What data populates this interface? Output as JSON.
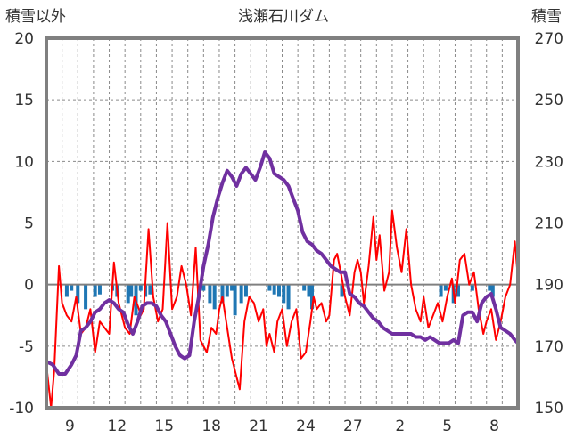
{
  "chart_data": {
    "type": "line",
    "title": "浅瀬石川ダム",
    "ylabel_left": "積雪以外",
    "ylabel_right": "積雪",
    "x_ticks": [
      "9",
      "12",
      "15",
      "18",
      "21",
      "24",
      "27",
      "2",
      "5",
      "8"
    ],
    "x_range": [
      0,
      30
    ],
    "y_left_range": [
      -10,
      20
    ],
    "y_left_ticks": [
      "-10",
      "-5",
      "0",
      "5",
      "10",
      "15",
      "20"
    ],
    "y_right_range": [
      150,
      270
    ],
    "y_right_ticks": [
      "150",
      "170",
      "190",
      "210",
      "230",
      "250",
      "270"
    ],
    "grid": {
      "vertical_dashed": true,
      "horizontal_dashed": true
    },
    "colors": {
      "temperature": "#ff0000",
      "snow_depth": "#7030a0",
      "precipitation": "#1f77b4",
      "frame": "#808080",
      "zero_line": "#808080"
    },
    "series": [
      {
        "axis": "left",
        "color": "#ff0000",
        "x": [
          0.0,
          0.3,
          0.5,
          0.8,
          1.0,
          1.3,
          1.6,
          1.9,
          2.2,
          2.5,
          2.8,
          3.1,
          3.4,
          3.7,
          4.0,
          4.3,
          4.6,
          5.0,
          5.3,
          5.6,
          5.9,
          6.0,
          6.2,
          6.5,
          6.8,
          7.1,
          7.4,
          7.7,
          8.0,
          8.3,
          8.6,
          8.9,
          9.2,
          9.5,
          9.8,
          10.0,
          10.2,
          10.5,
          10.8,
          11.0,
          11.2,
          11.5,
          11.8,
          12.0,
          12.3,
          12.6,
          12.9,
          13.2,
          13.5,
          13.8,
          14.0,
          14.2,
          14.5,
          14.7,
          15.0,
          15.3,
          15.6,
          15.9,
          16.2,
          16.5,
          16.8,
          17.0,
          17.2,
          17.5,
          17.8,
          18.0,
          18.3,
          18.5,
          18.8,
          19.0,
          19.3,
          19.6,
          19.8,
          20.0,
          20.2,
          20.5,
          20.8,
          21.0,
          21.2,
          21.5,
          21.8,
          22.0,
          22.3,
          22.6,
          22.9,
          23.2,
          23.5,
          23.8,
          24.0,
          24.3,
          24.6,
          24.9,
          25.2,
          25.5,
          25.8,
          26.0,
          26.3,
          26.6,
          26.9,
          27.2,
          27.5,
          27.8,
          28.0,
          28.3,
          28.6,
          28.9,
          29.2,
          29.5,
          29.8,
          30.0
        ],
        "values": [
          -6.5,
          -10.0,
          -7.0,
          1.5,
          -1.5,
          -2.5,
          -3.0,
          -1.0,
          -4.0,
          -3.5,
          -2.0,
          -5.5,
          -3.0,
          -3.5,
          -4.0,
          1.8,
          -1.5,
          -3.5,
          -4.0,
          -1.0,
          -2.0,
          -2.5,
          -2.0,
          4.5,
          -1.0,
          -3.0,
          -2.0,
          5.0,
          -2.0,
          -1.0,
          1.5,
          0.0,
          -2.5,
          3.0,
          -4.5,
          -5.0,
          -5.5,
          -3.5,
          -4.0,
          -2.0,
          -1.0,
          -3.5,
          -6.0,
          -7.0,
          -8.5,
          -3.0,
          -1.0,
          -1.5,
          -3.0,
          -2.0,
          -5.0,
          -4.0,
          -5.5,
          -3.0,
          -2.0,
          -5.0,
          -3.0,
          -2.0,
          -6.0,
          -5.5,
          -3.0,
          -1.0,
          -2.0,
          -1.5,
          -3.0,
          -2.5,
          2.0,
          2.5,
          0.5,
          -1.0,
          -2.5,
          1.0,
          2.0,
          1.0,
          -1.5,
          1.5,
          5.5,
          2.0,
          4.0,
          -0.5,
          1.0,
          6.0,
          3.0,
          1.0,
          4.5,
          0.0,
          -2.0,
          -3.0,
          -1.0,
          -3.5,
          -2.5,
          -1.5,
          -3.0,
          -1.0,
          0.5,
          -1.5,
          2.0,
          2.5,
          0.0,
          1.0,
          -2.0,
          -4.0,
          -3.0,
          -2.0,
          -4.5,
          -3.0,
          -1.0,
          0.0,
          3.5,
          0.5
        ],
        "note": ""
      },
      {
        "axis": "right",
        "color": "#7030a0",
        "x": [
          0.0,
          0.4,
          0.8,
          1.2,
          1.6,
          1.9,
          2.2,
          2.5,
          2.8,
          3.1,
          3.4,
          3.7,
          4.0,
          4.3,
          4.6,
          4.9,
          5.2,
          5.5,
          5.8,
          6.1,
          6.4,
          6.7,
          7.0,
          7.3,
          7.6,
          7.9,
          8.2,
          8.5,
          8.8,
          9.1,
          9.4,
          9.7,
          10.0,
          10.3,
          10.6,
          10.9,
          11.2,
          11.5,
          11.8,
          12.1,
          12.4,
          12.7,
          13.0,
          13.3,
          13.6,
          13.9,
          14.2,
          14.5,
          14.8,
          15.1,
          15.4,
          15.7,
          16.0,
          16.3,
          16.6,
          16.9,
          17.2,
          17.5,
          17.8,
          18.1,
          18.4,
          18.7,
          19.0,
          19.3,
          19.6,
          19.9,
          20.2,
          20.5,
          20.8,
          21.1,
          21.4,
          21.7,
          22.0,
          22.3,
          22.6,
          22.9,
          23.2,
          23.5,
          23.8,
          24.1,
          24.4,
          24.7,
          25.0,
          25.3,
          25.6,
          25.9,
          26.2,
          26.5,
          26.8,
          27.1,
          27.4,
          27.7,
          28.0,
          28.3,
          28.6,
          28.9,
          29.2,
          29.5,
          29.8,
          30.0
        ],
        "values": [
          165,
          164,
          161,
          161,
          164,
          167,
          175,
          176,
          178,
          181,
          182,
          184,
          185,
          184,
          182,
          181,
          177,
          174,
          178,
          183,
          184,
          184,
          183,
          180,
          178,
          174,
          170,
          167,
          166,
          167,
          178,
          186,
          196,
          203,
          212,
          218,
          223,
          227,
          225,
          222,
          226,
          228,
          226,
          224,
          228,
          233,
          231,
          226,
          225,
          224,
          222,
          218,
          214,
          207,
          204,
          203,
          201,
          200,
          198,
          196,
          195,
          194,
          194,
          187,
          186,
          184,
          183,
          181,
          179,
          178,
          176,
          175,
          174,
          174,
          174,
          174,
          174,
          173,
          173,
          172,
          173,
          172,
          171,
          171,
          171,
          172,
          171,
          180,
          181,
          181,
          178,
          184,
          186,
          187,
          182,
          176,
          175,
          174,
          172,
          171
        ]
      },
      {
        "axis": "left",
        "type": "bar",
        "color": "#1f77b4",
        "x": [
          1.3,
          1.6,
          2.0,
          2.5,
          3.1,
          3.4,
          4.2,
          4.5,
          5.2,
          5.4,
          5.7,
          6.0,
          6.3,
          6.6,
          9.7,
          10.0,
          10.4,
          10.7,
          11.2,
          11.5,
          11.8,
          12.0,
          12.4,
          12.7,
          14.2,
          14.5,
          14.8,
          15.1,
          15.4,
          16.4,
          16.7,
          16.9,
          18.8,
          25.1,
          25.4,
          25.9,
          26.2,
          27.1,
          28.2,
          28.4
        ],
        "values": [
          -1.0,
          -0.5,
          -1.5,
          -2.0,
          -1.0,
          -0.8,
          -0.5,
          -1.0,
          -1.5,
          -1.0,
          -2.5,
          -0.5,
          -1.0,
          -0.8,
          -1.0,
          -0.5,
          -1.5,
          -2.0,
          -1.5,
          -1.0,
          -0.5,
          -2.5,
          -1.5,
          -1.0,
          -0.5,
          -0.8,
          -1.0,
          -1.5,
          -2.0,
          -0.5,
          -1.0,
          -2.0,
          -1.0,
          -1.0,
          -0.5,
          -1.5,
          -1.0,
          -0.5,
          -0.5,
          -1.0
        ]
      }
    ]
  }
}
